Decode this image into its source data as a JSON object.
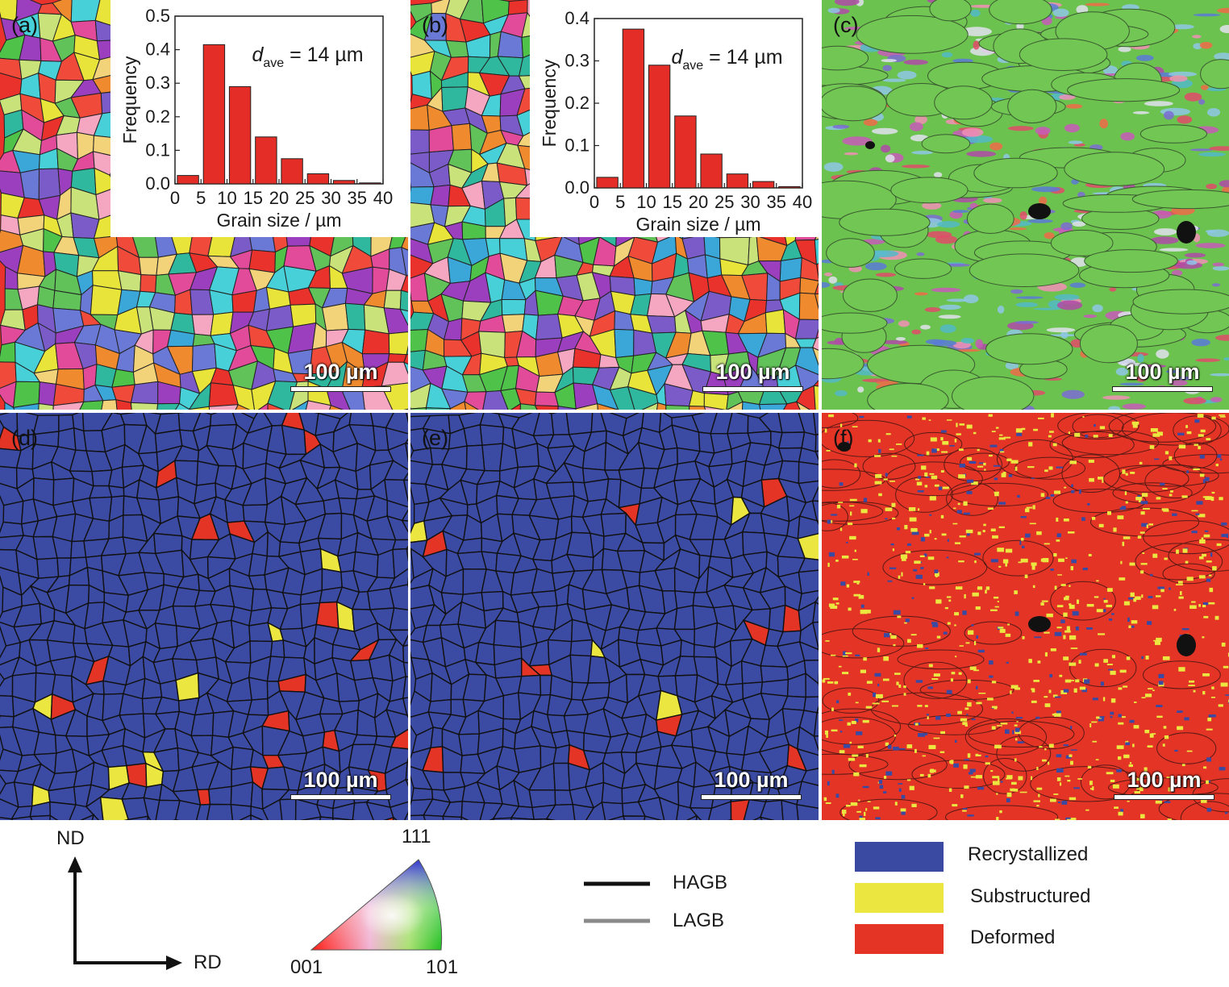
{
  "panels": {
    "a": {
      "label": "(a)",
      "scale": "100 µm"
    },
    "b": {
      "label": "(b)",
      "scale": "100 µm"
    },
    "c": {
      "label": "(c)",
      "scale": "100 µm"
    },
    "d": {
      "label": "(d)",
      "scale": "100 µm"
    },
    "e": {
      "label": "(e)",
      "scale": "100 µm"
    },
    "f": {
      "label": "(f)",
      "scale": "100 µm"
    }
  },
  "chart_data": [
    {
      "type": "bar",
      "panel": "a",
      "categories": [
        "5",
        "10",
        "15",
        "20",
        "25",
        "30",
        "35",
        "40"
      ],
      "values": [
        0.025,
        0.415,
        0.29,
        0.14,
        0.075,
        0.03,
        0.01,
        0.003
      ],
      "xlabel": "Grain size / µm",
      "ylabel": "Frequency",
      "xlim": [
        0,
        40
      ],
      "ylim": [
        0,
        0.5
      ],
      "yticks": [
        "0.0",
        "0.1",
        "0.2",
        "0.3",
        "0.4",
        "0.5"
      ],
      "xticks": [
        "0",
        "5",
        "10",
        "15",
        "20",
        "25",
        "30",
        "35",
        "40"
      ],
      "annotation": {
        "symbol": "d",
        "subscript": "ave",
        "text": " = 14 µm"
      },
      "bar_color": "#e32d26"
    },
    {
      "type": "bar",
      "panel": "b",
      "categories": [
        "5",
        "10",
        "15",
        "20",
        "25",
        "30",
        "35",
        "40"
      ],
      "values": [
        0.025,
        0.375,
        0.29,
        0.17,
        0.08,
        0.033,
        0.015,
        0.003
      ],
      "xlabel": "Grain size / µm",
      "ylabel": "Frequency",
      "xlim": [
        0,
        40
      ],
      "ylim": [
        0,
        0.4
      ],
      "yticks": [
        "0.0",
        "0.1",
        "0.2",
        "0.3",
        "0.4"
      ],
      "xticks": [
        "0",
        "5",
        "10",
        "15",
        "20",
        "25",
        "30",
        "35",
        "40"
      ],
      "annotation": {
        "symbol": "d",
        "subscript": "ave",
        "text": " = 14 µm"
      },
      "bar_color": "#e32d26"
    }
  ],
  "axes_legend": {
    "nd": "ND",
    "rd": "RD"
  },
  "ipf_legend": {
    "top": "111",
    "left": "001",
    "right": "101"
  },
  "boundary_legend": {
    "hagb": "HAGB",
    "lagb": "LAGB",
    "hagb_color": "#111111",
    "lagb_color": "#8a8a8a"
  },
  "state_legend": [
    {
      "label": "Recrystallized",
      "color": "#3a4aa2"
    },
    {
      "label": "Substructured",
      "color": "#ebe640"
    },
    {
      "label": "Deformed",
      "color": "#e33426"
    }
  ]
}
